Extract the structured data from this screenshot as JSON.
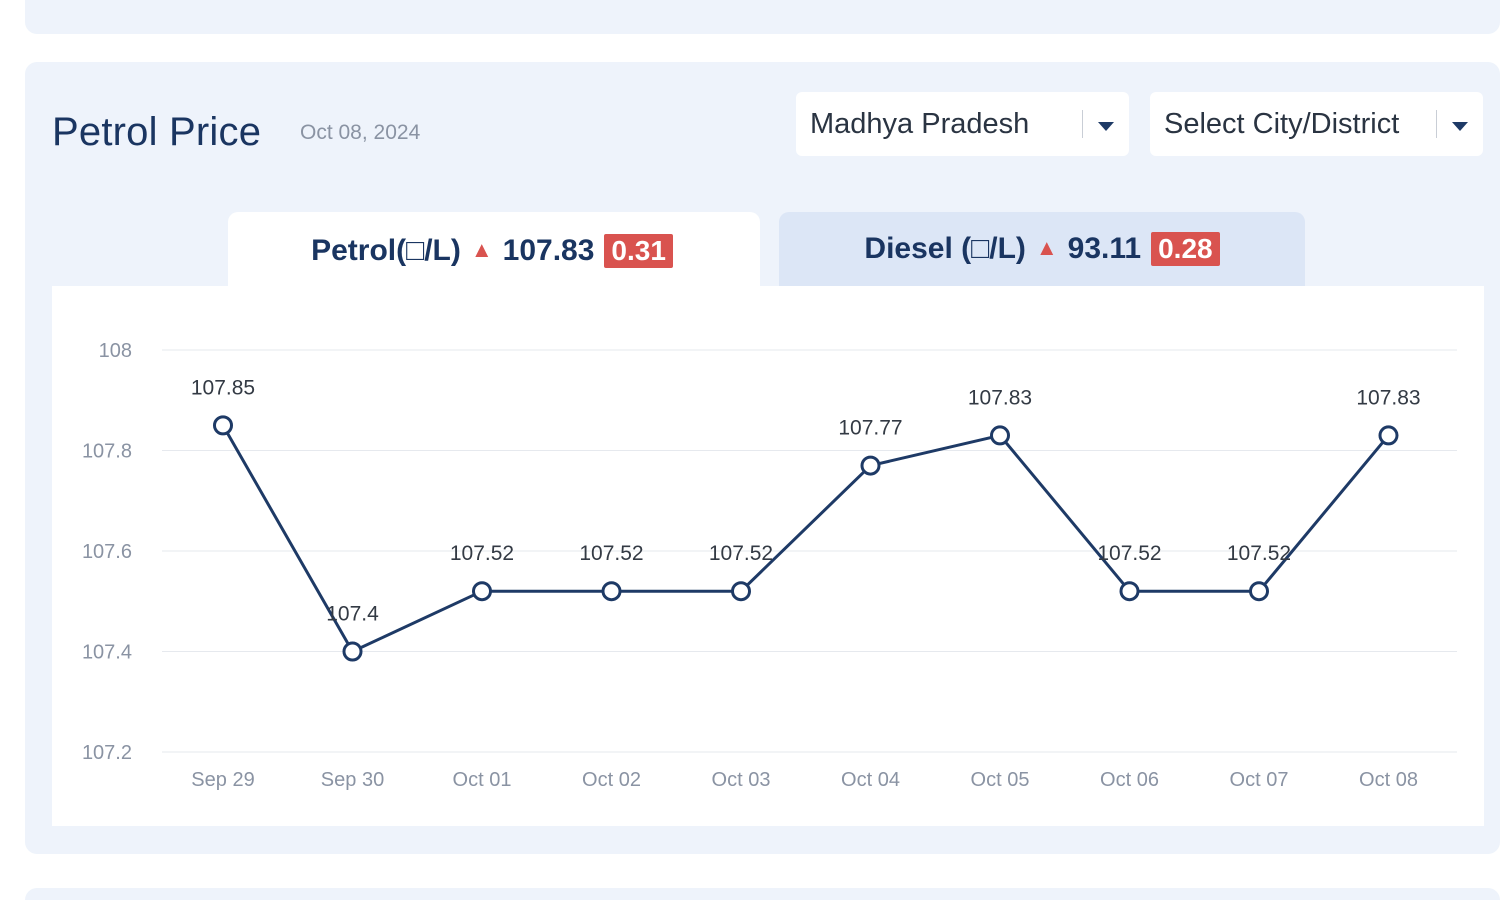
{
  "header": {
    "title": "Petrol Price",
    "date": "Oct 08, 2024"
  },
  "filters": {
    "state": "Madhya Pradesh",
    "city_placeholder": "Select City/District"
  },
  "tabs": [
    {
      "label": "Petrol(□/L)",
      "value": "107.83",
      "change": "0.31",
      "trend": "up"
    },
    {
      "label": "Diesel (□/L)",
      "value": "93.11",
      "change": "0.28",
      "trend": "up"
    }
  ],
  "colors": {
    "line": "#1e3a66",
    "badge": "#d9534f",
    "panel": "#eef3fb"
  },
  "chart_data": {
    "type": "line",
    "title": "",
    "xlabel": "",
    "ylabel": "",
    "categories": [
      "Sep 29",
      "Sep 30",
      "Oct 01",
      "Oct 02",
      "Oct 03",
      "Oct 04",
      "Oct 05",
      "Oct 06",
      "Oct 07",
      "Oct 08"
    ],
    "series": [
      {
        "name": "Petrol",
        "values": [
          107.85,
          107.4,
          107.52,
          107.52,
          107.52,
          107.77,
          107.83,
          107.52,
          107.52,
          107.83
        ]
      }
    ],
    "data_labels": [
      "107.85",
      "107.4",
      "107.52",
      "107.52",
      "107.52",
      "107.77",
      "107.83",
      "107.52",
      "107.52",
      "107.83"
    ],
    "yticks": [
      "108",
      "107.8",
      "107.6",
      "107.4",
      "107.2"
    ],
    "ylim": [
      107.2,
      108
    ],
    "grid": true
  }
}
